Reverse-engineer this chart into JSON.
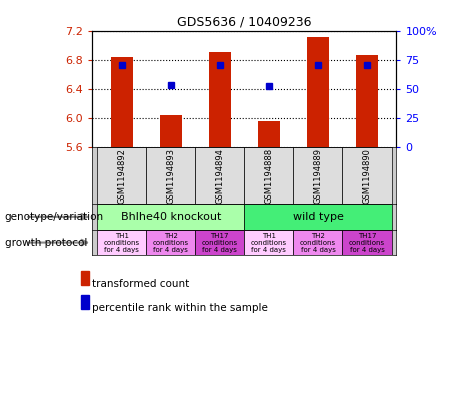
{
  "title": "GDS5636 / 10409236",
  "samples": [
    "GSM1194892",
    "GSM1194893",
    "GSM1194894",
    "GSM1194888",
    "GSM1194889",
    "GSM1194890"
  ],
  "bar_values": [
    6.85,
    6.05,
    6.92,
    5.97,
    7.13,
    6.87
  ],
  "percentile_values": [
    6.74,
    6.46,
    6.74,
    6.44,
    6.74,
    6.74
  ],
  "ylim": [
    5.6,
    7.2
  ],
  "yticks_left": [
    5.6,
    6.0,
    6.4,
    6.8,
    7.2
  ],
  "yticks_right": [
    0,
    25,
    50,
    75,
    100
  ],
  "bar_color": "#cc2200",
  "dot_color": "#0000cc",
  "bar_width": 0.45,
  "genotype_labels": [
    "Bhlhe40 knockout",
    "wild type"
  ],
  "genotype_colors": [
    "#aaffaa",
    "#44ee77"
  ],
  "growth_labels": [
    "TH1\nconditions\nfor 4 days",
    "TH2\nconditions\nfor 4 days",
    "TH17\nconditions\nfor 4 days",
    "TH1\nconditions\nfor 4 days",
    "TH2\nconditions\nfor 4 days",
    "TH17\nconditions\nfor 4 days"
  ],
  "growth_colors": [
    "#ffccff",
    "#ee88ee",
    "#cc44cc",
    "#ffccff",
    "#ee88ee",
    "#cc44cc"
  ],
  "legend_bar_label": "transformed count",
  "legend_dot_label": "percentile rank within the sample",
  "genotype_label_text": "genotype/variation",
  "growth_label_text": "growth protocol",
  "sample_box_color": "#cccccc",
  "plot_bg": "#ffffff"
}
